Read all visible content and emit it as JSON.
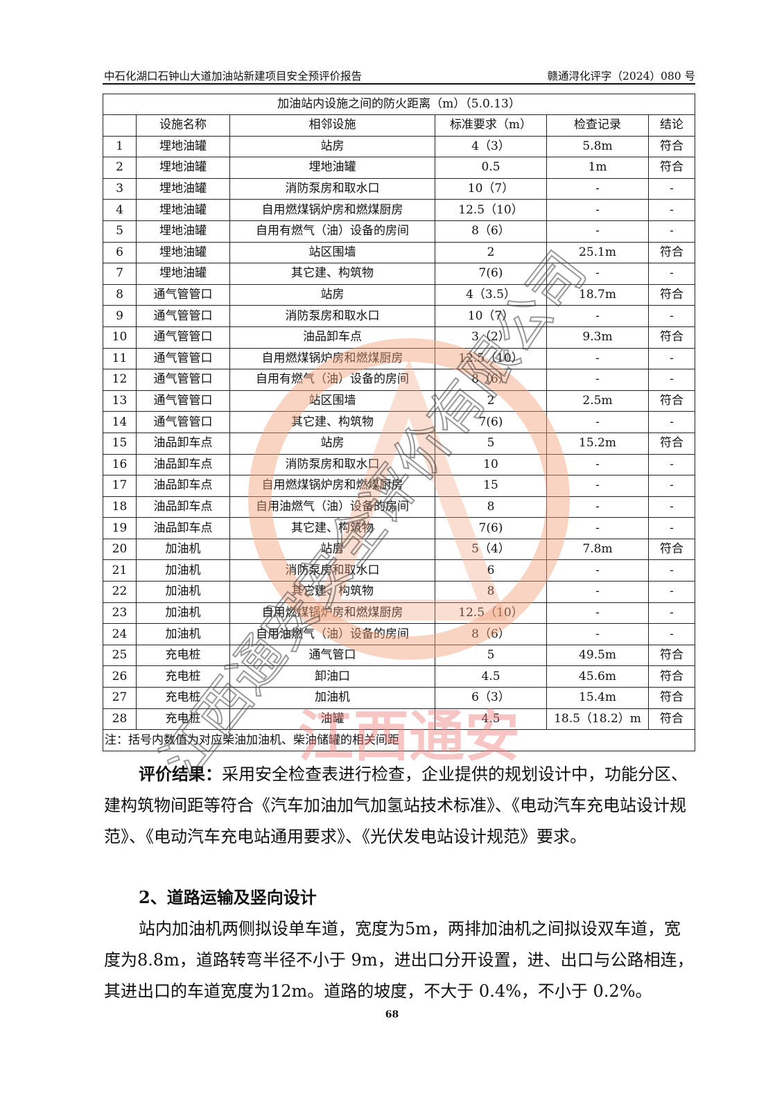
{
  "header": {
    "left": "中石化湖口石钟山大道加油站新建项目安全预评价报告",
    "right": "赣通浔化评字（2024）080 号"
  },
  "table": {
    "title": "加油站内设施之间的防火距离（m）（5.0.13）",
    "columns": [
      "",
      "设施名称",
      "相邻设施",
      "标准要求（m）",
      "检查记录",
      "结论"
    ],
    "rows": [
      [
        "1",
        "埋地油罐",
        "站房",
        "4（3）",
        "5.8m",
        "符合"
      ],
      [
        "2",
        "埋地油罐",
        "埋地油罐",
        "0.5",
        "1m",
        "符合"
      ],
      [
        "3",
        "埋地油罐",
        "消防泵房和取水口",
        "10（7）",
        "-",
        "-"
      ],
      [
        "4",
        "埋地油罐",
        "自用燃煤锅炉房和燃煤厨房",
        "12.5（10）",
        "-",
        "-"
      ],
      [
        "5",
        "埋地油罐",
        "自用有燃气（油）设备的房间",
        "8（6）",
        "-",
        "-"
      ],
      [
        "6",
        "埋地油罐",
        "站区围墙",
        "2",
        "25.1m",
        "符合"
      ],
      [
        "7",
        "埋地油罐",
        "其它建、构筑物",
        "7(6)",
        "-",
        "-"
      ],
      [
        "8",
        "通气管管口",
        "站房",
        "4（3.5）",
        "18.7m",
        "符合"
      ],
      [
        "9",
        "通气管管口",
        "消防泵房和取水口",
        "10（7）",
        "-",
        "-"
      ],
      [
        "10",
        "通气管管口",
        "油品卸车点",
        "3（2）",
        "9.3m",
        "符合"
      ],
      [
        "11",
        "通气管管口",
        "自用燃煤锅炉房和燃煤厨房",
        "12.5（10）",
        "-",
        "-"
      ],
      [
        "12",
        "通气管管口",
        "自用有燃气（油）设备的房间",
        "8（6）",
        "-",
        "-"
      ],
      [
        "13",
        "通气管管口",
        "站区围墙",
        "2",
        "2.5m",
        "符合"
      ],
      [
        "14",
        "通气管管口",
        "其它建、构筑物",
        "7(6)",
        "-",
        "-"
      ],
      [
        "15",
        "油品卸车点",
        "站房",
        "5",
        "15.2m",
        "符合"
      ],
      [
        "16",
        "油品卸车点",
        "消防泵房和取水口",
        "10",
        "-",
        "-"
      ],
      [
        "17",
        "油品卸车点",
        "自用燃煤锅炉房和燃煤厨房",
        "15",
        "-",
        "-"
      ],
      [
        "18",
        "油品卸车点",
        "自用油燃气（油）设备的房间",
        "8",
        "-",
        "-"
      ],
      [
        "19",
        "油品卸车点",
        "其它建、构筑物",
        "7(6)",
        "-",
        "-"
      ],
      [
        "20",
        "加油机",
        "站房",
        "5（4）",
        "7.8m",
        "符合"
      ],
      [
        "21",
        "加油机",
        "消防泵房和取水口",
        "6",
        "-",
        "-"
      ],
      [
        "22",
        "加油机",
        "其它建、构筑物",
        "8",
        "-",
        "-"
      ],
      [
        "23",
        "加油机",
        "自用燃煤锅炉房和燃煤厨房",
        "12.5（10）",
        "-",
        "-"
      ],
      [
        "24",
        "加油机",
        "自用油燃气（油）设备的房间",
        "8（6）",
        "-",
        "-"
      ],
      [
        "25",
        "充电桩",
        "通气管口",
        "5",
        "49.5m",
        "符合"
      ],
      [
        "26",
        "充电桩",
        "卸油口",
        "4.5",
        "45.6m",
        "符合"
      ],
      [
        "27",
        "充电桩",
        "加油机",
        "6（3）",
        "15.4m",
        "符合"
      ],
      [
        "28",
        "充电桩",
        "油罐",
        "4.5",
        "18.5（18.2）m",
        "符合"
      ]
    ],
    "note": "注：括号内数值为对应柴油加油机、柴油储罐的相关间距"
  },
  "body": {
    "p1_label": "评价结果：",
    "p1_text": "采用安全检查表进行检查，企业提供的规划设计中，功能分区、建构筑物间距等符合《汽车加油加气加氢站技术标准》、《电动汽车充电站设计规范》、《电动汽车充电站通用要求》、《光伏发电站设计规范》要求。",
    "h2": "2、道路运输及竖向设计",
    "p2": "站内加油机两侧拟设单车道，宽度为5m，两排加油机之间拟设双车道，宽度为8.8m，道路转弯半径不小于 9m，进出口分开设置，进、出口与公路相连，其进出口的车道宽度为12m。道路的坡度，不大于 0.4%，不小于 0.2%。"
  },
  "page_number": "68",
  "watermark": {
    "ring_text": "江西通安安全评价有限公司",
    "bottom_text": "江西通安",
    "colors": {
      "ring": "#f2a07a",
      "text": "#555555",
      "red": "#f08080"
    }
  }
}
